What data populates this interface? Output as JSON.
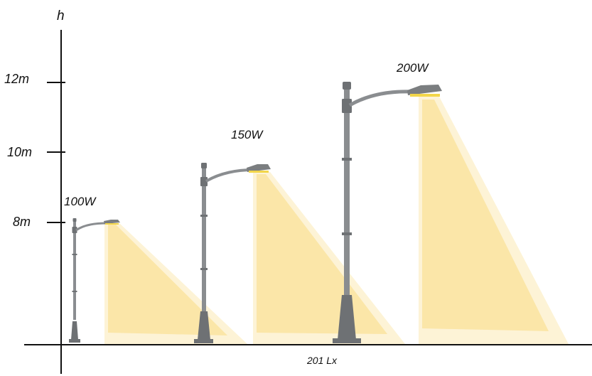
{
  "diagram": {
    "axis_label": "h",
    "height_ticks": [
      {
        "label": "12m",
        "value": 12
      },
      {
        "label": "10m",
        "value": 10
      },
      {
        "label": "8m",
        "value": 8
      }
    ],
    "poles": [
      {
        "wattage": "100W",
        "height_m": 8
      },
      {
        "wattage": "150W",
        "height_m": 10
      },
      {
        "wattage": "200W",
        "height_m": 12
      }
    ],
    "illuminance_label": "201 Lx"
  },
  "colors": {
    "pole": "#8a8d90",
    "pole_dark": "#6e7174",
    "lamp_head": "#7b7e80",
    "lamp_glow": "#f2d64a",
    "beam_light": "#fdf3d6",
    "beam": "#fbe6a8",
    "axis": "#111111"
  }
}
